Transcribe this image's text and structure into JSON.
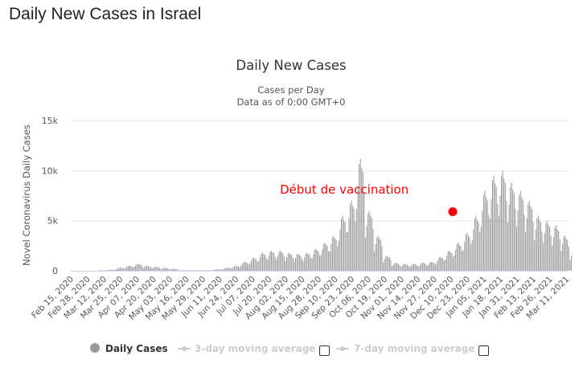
{
  "page": {
    "title": "Daily New Cases in Israel"
  },
  "chart_data": {
    "type": "bar",
    "title": "Daily New Cases",
    "subtitle_lines": [
      "Cases per Day",
      "Data as of 0:00 GMT+0"
    ],
    "ylabel": "Novel Coronavirus Daily Cases",
    "xlabel": "",
    "ylim": [
      0,
      15000
    ],
    "yticks": [
      0,
      5000,
      10000,
      15000
    ],
    "ytick_labels": [
      "0",
      "5k",
      "10k",
      "15k"
    ],
    "grid": true,
    "start_date": "Feb 15, 2020",
    "days": 394,
    "xtick_every_days": 13,
    "xtick_labels": [
      "Feb 15, 2020",
      "Feb 28, 2020",
      "Mar 12, 2020",
      "Mar 25, 2020",
      "Apr 07, 2020",
      "Apr 20, 2020",
      "May 03, 2020",
      "May 16, 2020",
      "May 29, 2020",
      "Jun 11, 2020",
      "Jun 24, 2020",
      "Jul 07, 2020",
      "Jul 20, 2020",
      "Aug 02, 2020",
      "Aug 15, 2020",
      "Aug 28, 2020",
      "Sep 10, 2020",
      "Sep 23, 2020",
      "Oct 06, 2020",
      "Oct 19, 2020",
      "Nov 01, 2020",
      "Nov 14, 2020",
      "Nov 27, 2020",
      "Dec 10, 2020",
      "Dec 23, 2020",
      "Jan 05, 2021",
      "Jan 18, 2021",
      "Jan 31, 2021",
      "Feb 13, 2021",
      "Feb 26, 2021",
      "Mar 11, 2021"
    ],
    "weekly_peak_cases": [
      0,
      0,
      0,
      20,
      100,
      300,
      500,
      700,
      500,
      400,
      300,
      200,
      50,
      20,
      20,
      50,
      150,
      300,
      500,
      900,
      1300,
      1800,
      2000,
      2000,
      1800,
      1700,
      1800,
      2200,
      2800,
      3500,
      5500,
      7000,
      11200,
      6000,
      3500,
      1500,
      800,
      700,
      700,
      800,
      900,
      1400,
      2000,
      2800,
      3800,
      5500,
      8000,
      9500,
      10000,
      8800,
      8000,
      7000,
      5500,
      5000,
      4500,
      3500,
      2000
    ],
    "weekday_factors": [
      0.55,
      0.75,
      0.95,
      1.0,
      0.92,
      0.88,
      0.7
    ],
    "series": [
      {
        "name": "Daily Cases",
        "color": "#999999",
        "enabled": true
      },
      {
        "name": "3-day moving average",
        "color": "#cccccc",
        "enabled": false
      },
      {
        "name": "7-day moving average",
        "color": "#cccccc",
        "enabled": false
      }
    ],
    "annotation": {
      "text": "Début de vaccination",
      "color": "#ff0000",
      "point_day": 300,
      "point_value": 5900,
      "text_day": 164,
      "text_value": 8100
    }
  }
}
